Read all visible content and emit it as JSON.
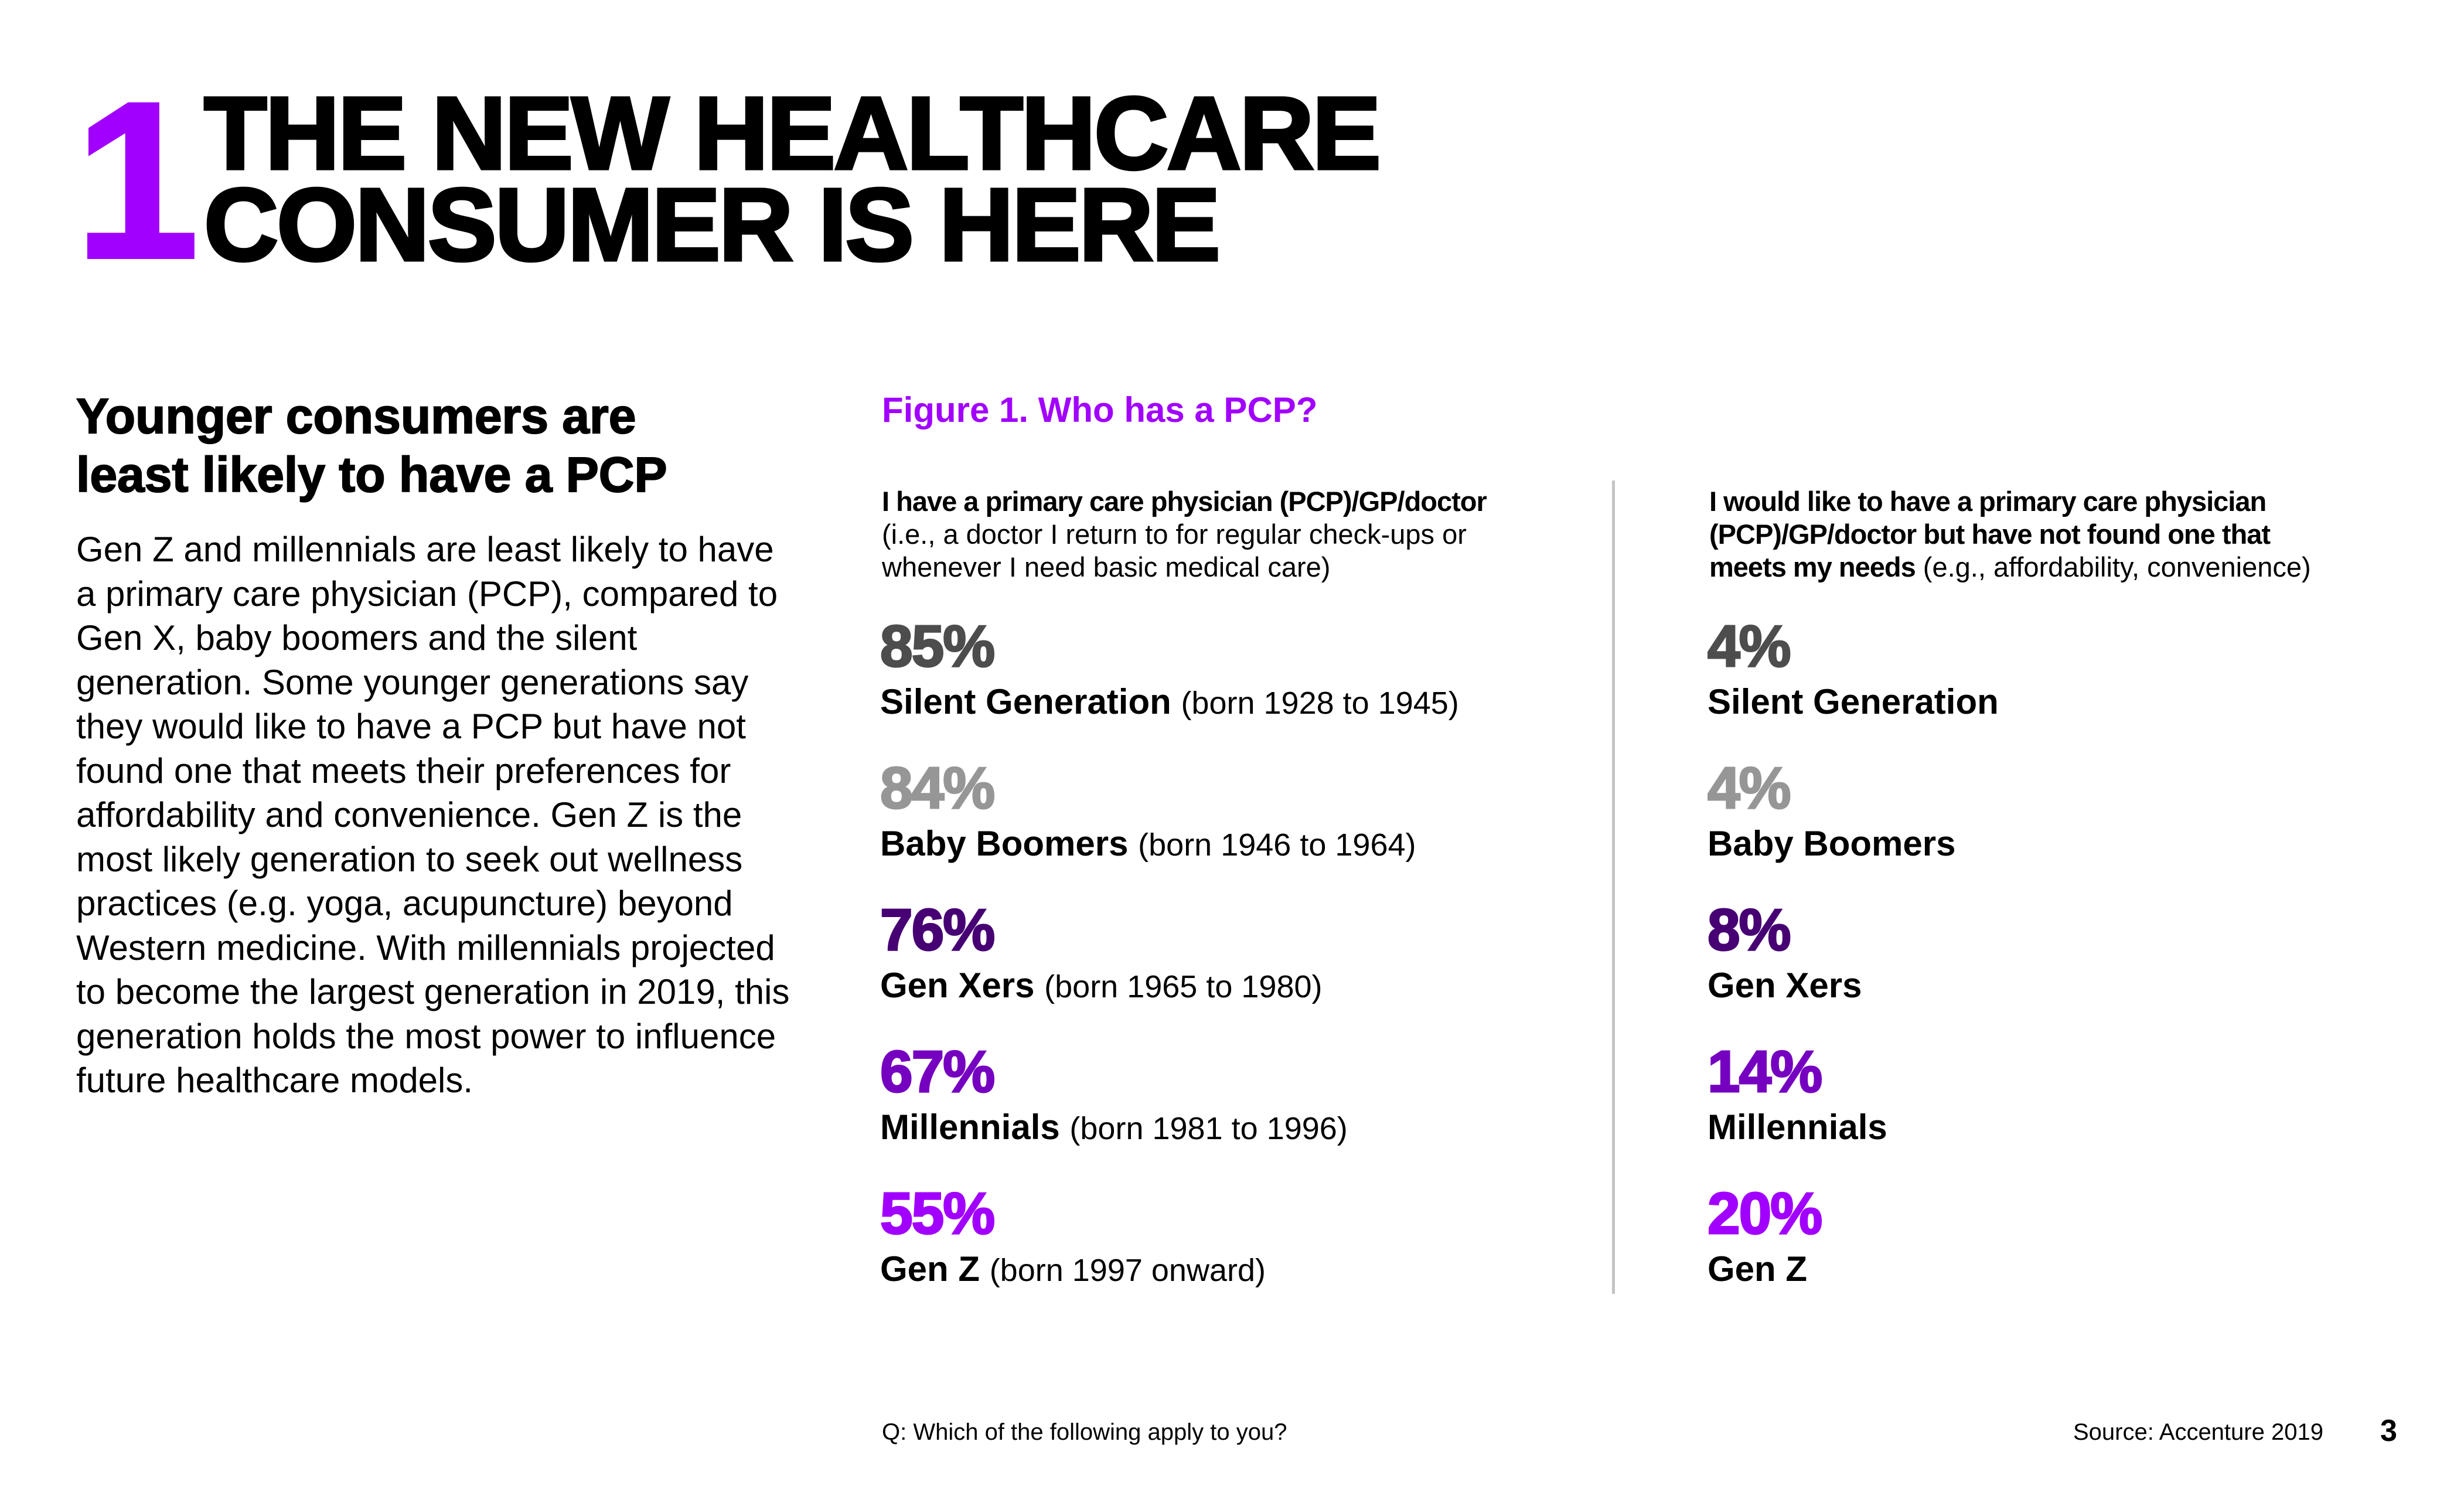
{
  "header": {
    "section_number": "1",
    "title_line1": "THE NEW HEALTHCARE",
    "title_line2": "CONSUMER IS HERE"
  },
  "intro": {
    "heading_line1": "Younger consumers are",
    "heading_line2": "least likely to have a PCP",
    "body": "Gen Z and millennials are least likely to have a primary care physician (PCP), compared to Gen X, baby boomers and the silent generation. Some younger generations say they would like to have a PCP but have not found one that meets their preferences for affordability and convenience. Gen Z is the most likely generation to seek out wellness practices (e.g. yoga, acupuncture) beyond Western medicine. With millennials projected to become the largest generation in 2019, this generation holds the most power to influence future healthcare models."
  },
  "figure": {
    "title": "Figure 1. Who has a PCP?",
    "left_column": {
      "header_bold": "I have a primary care physician (PCP)/GP/doctor",
      "header_line2": "(i.e., a doctor I return to for regular check-ups or",
      "header_line3": "whenever I need basic medical care)"
    },
    "right_column": {
      "header_line1": "I would like to have a primary care physician",
      "header_line2": "(PCP)/GP/doctor but have not found one that",
      "header_line3_bold": "meets my needs",
      "header_line3_rest": " (e.g., affordability, convenience)"
    },
    "generations": [
      {
        "name": "Silent Generation",
        "born": "(born 1928 to 1945)",
        "has_pcp": "85%",
        "wants_pcp": "4%",
        "color": "#4d4d4d"
      },
      {
        "name": "Baby Boomers",
        "born": "(born 1946 to 1964)",
        "has_pcp": "84%",
        "wants_pcp": "4%",
        "color": "#969696"
      },
      {
        "name": "Gen Xers",
        "born": "(born 1965 to 1980)",
        "has_pcp": "76%",
        "wants_pcp": "8%",
        "color": "#460073"
      },
      {
        "name": "Millennials",
        "born": "(born 1981 to 1996)",
        "has_pcp": "67%",
        "wants_pcp": "14%",
        "color": "#7500c0"
      },
      {
        "name": "Gen Z",
        "born": "(born 1997 onward)",
        "has_pcp": "55%",
        "wants_pcp": "20%",
        "color": "#a100ff"
      }
    ]
  },
  "chart_data": [
    {
      "type": "table",
      "title": "I have a primary care physician (PCP)/GP/doctor",
      "categories": [
        "Silent Generation",
        "Baby Boomers",
        "Gen Xers",
        "Millennials",
        "Gen Z"
      ],
      "values": [
        85,
        84,
        76,
        67,
        55
      ],
      "unit": "%"
    },
    {
      "type": "table",
      "title": "I would like to have a primary care physician (PCP)/GP/doctor but have not found one that meets my needs",
      "categories": [
        "Silent Generation",
        "Baby Boomers",
        "Gen Xers",
        "Millennials",
        "Gen Z"
      ],
      "values": [
        4,
        4,
        8,
        14,
        20
      ],
      "unit": "%"
    }
  ],
  "footer": {
    "question": "Q: Which of the following apply to you?",
    "source": "Source: Accenture 2019",
    "page_number": "3"
  }
}
